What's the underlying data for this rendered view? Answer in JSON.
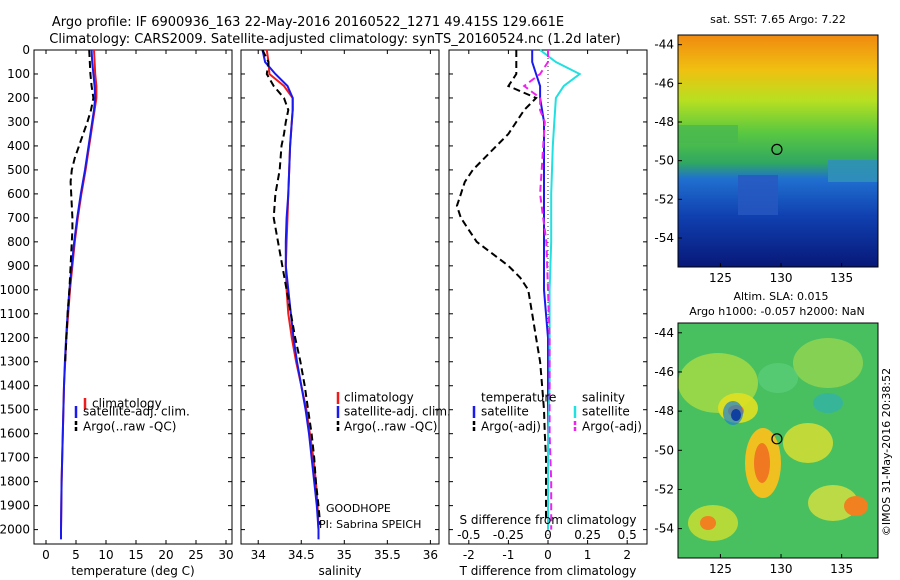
{
  "header": {
    "line1": "Argo profile: IF 6900936_163 22-May-2016 20160522_1271 49.415S 129.661E",
    "line2": "Climatology: CARS2009. Satellite-adjusted climatology: synTS_20160524.nc (1.2d later)"
  },
  "credit": "©IMOS 31-May-2016 20:38:52",
  "colors": {
    "climatology": "#ee1c1c",
    "satellite": "#1a1aee",
    "argo": "#000000",
    "sat_salinity": "#20e0e0",
    "argo_salinity_adj": "#ee22ee"
  },
  "chart_data": [
    {
      "type": "line",
      "xlabel": "temperature (deg C)",
      "ylabel": "",
      "xlim": [
        -2,
        31
      ],
      "ylim": [
        2060,
        0
      ],
      "xticks": [
        "0",
        "5",
        "10",
        "15",
        "20",
        "25",
        "30"
      ],
      "yticks": [
        "0",
        "100",
        "200",
        "300",
        "400",
        "500",
        "600",
        "700",
        "800",
        "900",
        "1000",
        "1100",
        "1200",
        "1300",
        "1400",
        "1500",
        "1600",
        "1700",
        "1800",
        "1900",
        "2000"
      ],
      "legend": {
        "placement": "lower-center",
        "entries": [
          "climatology",
          "satellite-adj. clim.",
          "Argo(..raw -QC)"
        ]
      },
      "series": [
        {
          "name": "climatology",
          "depth": [
            0,
            50,
            100,
            150,
            200,
            250,
            300,
            400,
            500,
            600,
            700,
            800,
            900,
            1000,
            1100,
            1200,
            1300,
            1400,
            1500,
            1600,
            1700,
            1800,
            1900,
            2000,
            2040
          ],
          "values": [
            8.0,
            8.1,
            8.2,
            8.4,
            8.4,
            8.1,
            7.8,
            7.2,
            6.6,
            5.9,
            5.3,
            4.8,
            4.4,
            4.0,
            3.7,
            3.4,
            3.2,
            3.0,
            2.9,
            2.8,
            2.7,
            2.6,
            2.55,
            2.5,
            2.5
          ]
        },
        {
          "name": "satellite-adj. clim.",
          "depth": [
            0,
            50,
            100,
            150,
            200,
            250,
            300,
            400,
            500,
            600,
            700,
            800,
            900,
            1000,
            1100,
            1200,
            1300,
            1400,
            1500,
            1600,
            1700,
            1800,
            1900,
            2000,
            2040
          ],
          "values": [
            7.6,
            7.7,
            7.9,
            8.1,
            8.2,
            8.0,
            7.7,
            7.1,
            6.5,
            5.8,
            5.2,
            4.7,
            4.3,
            3.9,
            3.6,
            3.35,
            3.15,
            3.0,
            2.9,
            2.8,
            2.7,
            2.6,
            2.55,
            2.5,
            2.5
          ]
        },
        {
          "name": "Argo(..raw -QC)",
          "depth": [
            0,
            50,
            100,
            150,
            200,
            250,
            300,
            350,
            400,
            450,
            500,
            550,
            600,
            650,
            700,
            750,
            800,
            900,
            1000,
            1100,
            1200,
            1300
          ],
          "values": [
            7.2,
            7.3,
            7.4,
            7.6,
            7.9,
            7.5,
            6.9,
            6.2,
            5.5,
            4.8,
            4.3,
            4.1,
            4.2,
            4.3,
            4.4,
            4.4,
            4.3,
            4.1,
            3.9,
            3.6,
            3.4,
            3.2
          ]
        }
      ]
    },
    {
      "type": "line",
      "xlabel": "salinity",
      "xlim": [
        33.8,
        36.1
      ],
      "ylim": [
        2060,
        0
      ],
      "xticks": [
        "34",
        "34.5",
        "35",
        "35.5",
        "36"
      ],
      "legend": {
        "placement": "lower-right",
        "entries": [
          "climatology",
          "satellite-adj. clim.",
          "Argo(..raw -QC)"
        ]
      },
      "annotations": [
        "GOODHOPE",
        "PI: Sabrina SPEICH"
      ],
      "series": [
        {
          "name": "climatology",
          "depth": [
            0,
            50,
            100,
            150,
            200,
            250,
            300,
            400,
            500,
            600,
            700,
            800,
            900,
            1000,
            1100,
            1200,
            1300,
            1400,
            1500,
            1600,
            1700,
            1800,
            1900,
            2000,
            2040
          ],
          "values": [
            34.1,
            34.12,
            34.13,
            34.3,
            34.4,
            34.4,
            34.39,
            34.37,
            34.36,
            34.35,
            34.34,
            34.33,
            34.32,
            34.33,
            34.35,
            34.39,
            34.44,
            34.5,
            34.56,
            34.6,
            34.64,
            34.67,
            34.69,
            34.7,
            34.7
          ]
        },
        {
          "name": "satellite-adj. clim.",
          "depth": [
            0,
            50,
            100,
            150,
            200,
            250,
            300,
            400,
            500,
            600,
            700,
            800,
            900,
            1000,
            1100,
            1200,
            1300,
            1400,
            1500,
            1600,
            1700,
            1800,
            1900,
            2000,
            2040
          ],
          "values": [
            34.05,
            34.08,
            34.2,
            34.34,
            34.4,
            34.4,
            34.39,
            34.37,
            34.36,
            34.35,
            34.33,
            34.32,
            34.32,
            34.35,
            34.38,
            34.41,
            34.45,
            34.5,
            34.55,
            34.59,
            34.62,
            34.65,
            34.68,
            34.7,
            34.7
          ]
        },
        {
          "name": "Argo(..raw -QC)",
          "depth": [
            0,
            50,
            100,
            150,
            200,
            250,
            300,
            350,
            400,
            500,
            600,
            700,
            800,
            900,
            1000,
            1100,
            1200,
            1300,
            1400,
            1500,
            1600,
            1700,
            1800,
            1900,
            1980
          ],
          "values": [
            34.05,
            34.12,
            34.1,
            34.18,
            34.3,
            34.35,
            34.32,
            34.3,
            34.27,
            34.25,
            34.2,
            34.18,
            34.23,
            34.28,
            34.33,
            34.38,
            34.43,
            34.49,
            34.54,
            34.58,
            34.62,
            34.65,
            34.67,
            34.7,
            34.72
          ]
        }
      ]
    },
    {
      "type": "line",
      "xlabel": "T difference from climatology",
      "xlabel_top": "S difference from climatology",
      "xlim": [
        -2.5,
        2.5
      ],
      "ylim": [
        2060,
        0
      ],
      "xticks": [
        "-2",
        "-1",
        "0",
        "1",
        "2"
      ],
      "xticks_top": [
        "-0.5",
        "-0.25",
        "0",
        "0.25",
        "0.5"
      ],
      "legend": {
        "placement": "lower",
        "temperature_title": "temperature",
        "salinity_title": "salinity",
        "entries": [
          "satellite",
          "Argo(-adj)",
          "satellite",
          "Argo(-adj)"
        ]
      },
      "series": [
        {
          "name": "temperature satellite",
          "depth": [
            0,
            50,
            100,
            150,
            200,
            300,
            400,
            600,
            800,
            1000,
            1200,
            1400,
            1600,
            1800,
            2000
          ],
          "values": [
            -0.4,
            -0.4,
            -0.3,
            -0.2,
            -0.2,
            -0.1,
            -0.1,
            -0.1,
            -0.1,
            -0.1,
            0,
            0,
            0,
            0,
            0
          ]
        },
        {
          "name": "temperature Argo(-adj)",
          "depth": [
            0,
            50,
            100,
            150,
            200,
            250,
            300,
            350,
            400,
            450,
            500,
            550,
            600,
            650,
            700,
            750,
            800,
            850,
            900,
            950,
            1000,
            1100,
            1200,
            1300,
            1400,
            1500,
            1600,
            1700,
            1800,
            1900,
            1960
          ],
          "values": [
            -0.8,
            -0.8,
            -0.8,
            -1.0,
            -0.3,
            -0.6,
            -0.8,
            -1.0,
            -1.3,
            -1.6,
            -1.9,
            -2.1,
            -2.2,
            -2.3,
            -2.2,
            -2.0,
            -1.8,
            -1.4,
            -1.0,
            -0.7,
            -0.5,
            -0.4,
            -0.3,
            -0.2,
            -0.15,
            -0.1,
            -0.08,
            -0.05,
            -0.05,
            -0.05,
            -0.05
          ]
        },
        {
          "name": "salinity satellite",
          "depth": [
            0,
            50,
            100,
            150,
            200,
            300,
            400,
            600,
            800,
            1000,
            1200,
            1400,
            1600,
            1800,
            2000
          ],
          "values": [
            -0.05,
            0.05,
            0.2,
            0.1,
            0.05,
            0.04,
            0.03,
            0.02,
            0.02,
            0.01,
            0.01,
            0.01,
            0.0,
            0.0,
            0.0
          ]
        },
        {
          "name": "salinity Argo(-adj)",
          "depth": [
            0,
            50,
            100,
            150,
            200,
            250,
            300,
            400,
            500,
            600,
            700,
            800,
            1000,
            1200,
            1400,
            1600,
            1800,
            2000
          ],
          "values": [
            0.0,
            0.0,
            -0.05,
            -0.15,
            -0.05,
            -0.05,
            -0.02,
            -0.03,
            -0.04,
            -0.05,
            -0.03,
            -0.01,
            0.0,
            0.01,
            0.01,
            0.01,
            0.02,
            0.02
          ]
        }
      ]
    },
    {
      "type": "heatmap",
      "title": "sat. SST: 7.65 Argo: 7.22",
      "xticks": [
        "125",
        "130",
        "135"
      ],
      "yticks": [
        "-44",
        "-46",
        "-48",
        "-50",
        "-52",
        "-54"
      ],
      "xlim": [
        121.5,
        138
      ],
      "ylim": [
        -55.5,
        -43.5
      ],
      "marker": {
        "lon": 129.661,
        "lat": -49.415
      }
    },
    {
      "type": "heatmap",
      "title": "Altim. SLA: 0.015",
      "subtitle": "Argo h1000: -0.057 h2000: NaN",
      "xticks": [
        "125",
        "130",
        "135"
      ],
      "yticks": [
        "-44",
        "-46",
        "-48",
        "-50",
        "-52",
        "-54"
      ],
      "xlim": [
        121.5,
        138
      ],
      "ylim": [
        -55.5,
        -43.5
      ],
      "marker": {
        "lon": 129.661,
        "lat": -49.415
      }
    }
  ]
}
